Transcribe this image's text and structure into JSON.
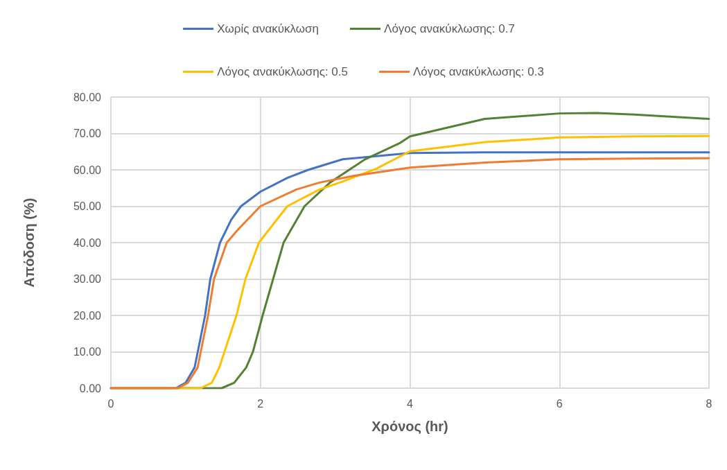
{
  "chart_data": {
    "type": "line",
    "xlabel": "Χρόνος (hr)",
    "ylabel": "Απόδοση (%)",
    "xlim": [
      0,
      8
    ],
    "xticks": [
      0,
      2,
      4,
      6,
      8
    ],
    "ylim": [
      0,
      80
    ],
    "yticks": [
      {
        "value": 0,
        "label": "0.00"
      },
      {
        "value": 10,
        "label": "10.00"
      },
      {
        "value": 20,
        "label": "20.00"
      },
      {
        "value": 30,
        "label": "30.00"
      },
      {
        "value": 40,
        "label": "40.00"
      },
      {
        "value": 50,
        "label": "50.00"
      },
      {
        "value": 60,
        "label": "60.00"
      },
      {
        "value": 70,
        "label": "70.00"
      },
      {
        "value": 80,
        "label": "80.00"
      }
    ],
    "grid": true,
    "legend": "top",
    "marker": "none",
    "line_style": "solid",
    "series": [
      {
        "name": "Χωρίς ανακύκλωση",
        "color": "#4472c4",
        "x": [
          0,
          0.5,
          0.87,
          1.0,
          1.12,
          1.26,
          1.33,
          1.46,
          1.61,
          1.74,
          2.0,
          2.36,
          2.64,
          3.1,
          4.0,
          5,
          6,
          7,
          8
        ],
        "values": [
          0,
          0,
          0,
          1.5,
          5.7,
          20,
          30,
          40,
          46.3,
          50,
          54,
          57.8,
          60,
          62.9,
          64.6,
          64.8,
          64.8,
          64.8,
          64.8
        ]
      },
      {
        "name": "Λόγος ανακύκλωσης: 0.7",
        "color": "#548235",
        "x": [
          0,
          1,
          1.48,
          1.65,
          1.81,
          1.9,
          2.03,
          2.17,
          2.31,
          2.59,
          2.93,
          3.4,
          3.86,
          4,
          5,
          6,
          6.5,
          7,
          8
        ],
        "values": [
          0,
          0,
          0,
          1.5,
          5.7,
          10,
          20,
          30,
          40,
          50,
          56.5,
          62.9,
          67.3,
          69.2,
          74,
          75.5,
          75.6,
          75.2,
          74
        ]
      },
      {
        "name": "Λόγος ανακύκλωσης: 0.5",
        "color": "#ffc000",
        "x": [
          0,
          1,
          1.2,
          1.35,
          1.45,
          1.68,
          1.8,
          1.98,
          2.36,
          2.79,
          3.1,
          3.55,
          4,
          5,
          6,
          7,
          8
        ],
        "values": [
          0,
          0,
          0,
          1.5,
          5.7,
          20,
          30,
          40,
          50,
          54.6,
          56.8,
          60.3,
          65.1,
          67.6,
          68.9,
          69.2,
          69.3
        ]
      },
      {
        "name": "Λόγος ανακύκλωσης: 0.3",
        "color": "#ed7d31",
        "x": [
          0,
          0.5,
          0.9,
          1.03,
          1.16,
          1.3,
          1.38,
          1.55,
          1.71,
          2.0,
          2.48,
          2.79,
          3.26,
          4,
          5,
          6,
          7,
          8
        ],
        "values": [
          0,
          0,
          0,
          1.5,
          5.7,
          20,
          30,
          40,
          43.8,
          50,
          54.6,
          56.5,
          58.4,
          60.6,
          62,
          62.9,
          63.1,
          63.2
        ]
      }
    ]
  }
}
